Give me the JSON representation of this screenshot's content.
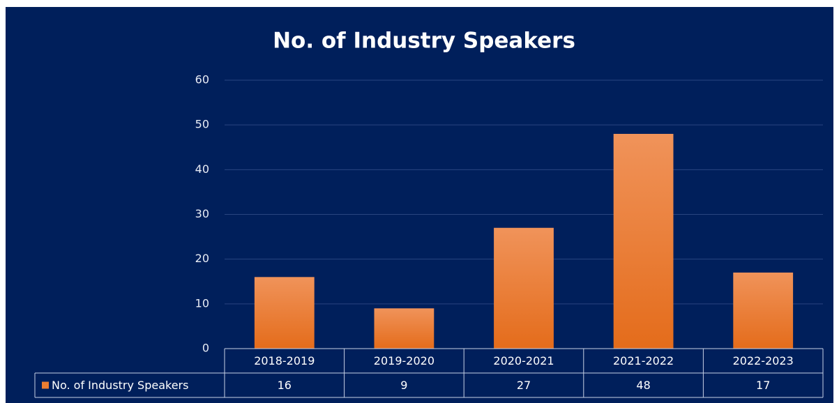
{
  "chart_data": {
    "type": "bar",
    "title": "No. of Industry Speakers",
    "categories": [
      "2018-2019",
      "2019-2020",
      "2020-2021",
      "2021-2022",
      "2022-2023"
    ],
    "series": [
      {
        "name": "No. of Industry Speakers",
        "color": "#ed7d31",
        "values": [
          16,
          9,
          27,
          48,
          17
        ]
      }
    ],
    "ylim": [
      0,
      60
    ],
    "yticks": [
      0,
      10,
      20,
      30,
      40,
      50,
      60
    ],
    "grid": true,
    "data_table": true
  }
}
